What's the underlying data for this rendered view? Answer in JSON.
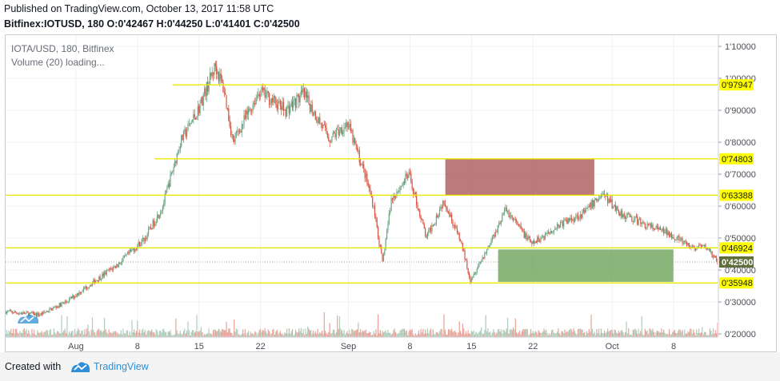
{
  "header": {
    "published": "Published on TradingView.com, October 13, 2017 11:58 UTC",
    "symbol_line": "Bitfinex:IOTUSD, 180 O:0'42467 H:0'44250 L:0'41401 C:0'42500"
  },
  "legend": {
    "title": "IOTA/USD, 180, Bitfinex",
    "volume": "Volume (20) loading..."
  },
  "footer": {
    "created_with": "Created with",
    "brand": "TradingView"
  },
  "colors": {
    "up": "#6ba583",
    "down": "#d75442",
    "level_line": "#e8e800",
    "label_bg": "#ffff00",
    "resistance_box": "#a34748",
    "support_box": "#5e9a4a",
    "current_label_bg": "#5f6e3a"
  },
  "chart_data": {
    "type": "candlestick",
    "title": "IOTA/USD, 180, Bitfinex",
    "y_axis": {
      "ticks": [
        0.2,
        0.3,
        0.4,
        0.5,
        0.6,
        0.7,
        0.8,
        0.9,
        1.0,
        1.1
      ],
      "tick_labels": [
        "0'20000",
        "0'30000",
        "0'40000",
        "0'50000",
        "0'60000",
        "0'70000",
        "0'80000",
        "0'90000",
        "1'00000",
        "1'10000"
      ],
      "ylim": [
        0.19,
        1.135
      ]
    },
    "x_axis": {
      "ticks": [
        "Aug",
        "8",
        "15",
        "22",
        "Sep",
        "8",
        "15",
        "22",
        "Oct",
        "8"
      ],
      "range": [
        "2017-07-24",
        "2017-10-13"
      ]
    },
    "levels": [
      {
        "value": 0.97947,
        "label": "0'97947"
      },
      {
        "value": 0.74803,
        "label": "0'74803"
      },
      {
        "value": 0.63388,
        "label": "0'63388"
      },
      {
        "value": 0.46924,
        "label": "0'46924"
      },
      {
        "value": 0.35948,
        "label": "0'35948"
      }
    ],
    "current_price": {
      "value": 0.425,
      "label": "0'42500"
    },
    "zones": [
      {
        "kind": "resistance",
        "from": "2017-09-12",
        "to": "2017-09-29",
        "low": 0.634,
        "high": 0.748
      },
      {
        "kind": "support",
        "from": "2017-09-18",
        "to": "2017-10-08",
        "low": 0.362,
        "high": 0.465
      }
    ],
    "price_path": [
      [
        "2017-07-24",
        0.27
      ],
      [
        "2017-07-28",
        0.26
      ],
      [
        "2017-07-31",
        0.3
      ],
      [
        "2017-08-03",
        0.36
      ],
      [
        "2017-08-06",
        0.42
      ],
      [
        "2017-08-09",
        0.5
      ],
      [
        "2017-08-11",
        0.6
      ],
      [
        "2017-08-13",
        0.8
      ],
      [
        "2017-08-15",
        0.9
      ],
      [
        "2017-08-17",
        1.04
      ],
      [
        "2017-08-18",
        0.96
      ],
      [
        "2017-08-19",
        0.8
      ],
      [
        "2017-08-22",
        0.96
      ],
      [
        "2017-08-25",
        0.9
      ],
      [
        "2017-08-27",
        0.95
      ],
      [
        "2017-08-30",
        0.81
      ],
      [
        "2017-09-01",
        0.86
      ],
      [
        "2017-09-03",
        0.7
      ],
      [
        "2017-09-04",
        0.6
      ],
      [
        "2017-09-05",
        0.42
      ],
      [
        "2017-09-06",
        0.62
      ],
      [
        "2017-09-08",
        0.7
      ],
      [
        "2017-09-10",
        0.5
      ],
      [
        "2017-09-12",
        0.62
      ],
      [
        "2017-09-14",
        0.48
      ],
      [
        "2017-09-15",
        0.37
      ],
      [
        "2017-09-17",
        0.47
      ],
      [
        "2017-09-19",
        0.59
      ],
      [
        "2017-09-22",
        0.48
      ],
      [
        "2017-09-25",
        0.54
      ],
      [
        "2017-09-28",
        0.58
      ],
      [
        "2017-09-30",
        0.64
      ],
      [
        "2017-10-02",
        0.58
      ],
      [
        "2017-10-05",
        0.54
      ],
      [
        "2017-10-08",
        0.51
      ],
      [
        "2017-10-10",
        0.47
      ],
      [
        "2017-10-12",
        0.47
      ],
      [
        "2017-10-13",
        0.425
      ]
    ]
  }
}
